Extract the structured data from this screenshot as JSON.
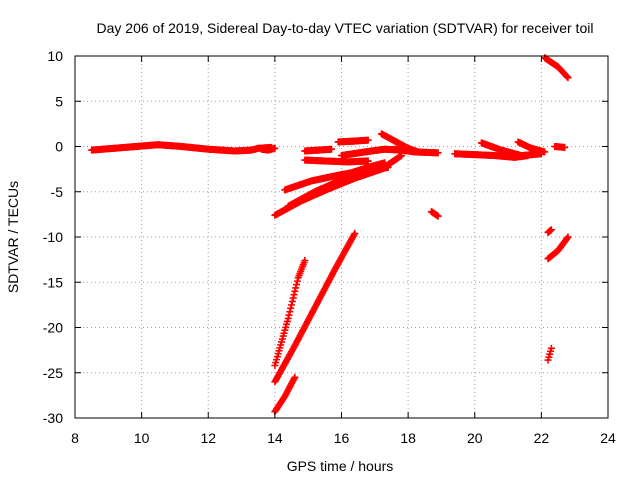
{
  "chart_data": {
    "type": "scatter",
    "title": "Day 206 of 2019, Sidereal Day-to-day VTEC variation (SDTVAR) for receiver toil",
    "xlabel": "GPS time / hours",
    "ylabel": "SDTVAR / TECUs",
    "xlim": [
      8,
      24
    ],
    "ylim": [
      -30,
      10
    ],
    "x_ticks": [
      8,
      10,
      12,
      14,
      16,
      18,
      20,
      22,
      24
    ],
    "y_ticks": [
      -30,
      -25,
      -20,
      -15,
      -10,
      -5,
      0,
      5,
      10
    ],
    "x_tick_labels": [
      "8",
      "10",
      "12",
      "14",
      "16",
      "18",
      "20",
      "22",
      "24"
    ],
    "y_tick_labels": [
      "-30",
      "-25",
      "-20",
      "-15",
      "-10",
      "-5",
      "0",
      "5",
      "10"
    ],
    "grid": true,
    "marker_color": "#ff0000",
    "series": [
      {
        "tracks": [
          [
            [
              8.5,
              -0.4
            ],
            [
              9.5,
              -0.1
            ],
            [
              10.5,
              0.2
            ],
            [
              11.2,
              0.0
            ],
            [
              12.0,
              -0.3
            ],
            [
              12.8,
              -0.5
            ],
            [
              13.3,
              -0.4
            ],
            [
              13.5,
              -0.2
            ],
            [
              13.9,
              -0.1
            ]
          ],
          [
            [
              13.6,
              -0.3
            ],
            [
              13.8,
              -0.4
            ],
            [
              14.0,
              -0.2
            ]
          ],
          [
            [
              14.9,
              -0.5
            ],
            [
              15.3,
              -0.4
            ],
            [
              15.7,
              -0.3
            ]
          ],
          [
            [
              14.9,
              -1.5
            ],
            [
              15.5,
              -1.6
            ],
            [
              16.2,
              -1.7
            ],
            [
              16.8,
              -1.6
            ]
          ],
          [
            [
              15.9,
              0.5
            ],
            [
              16.4,
              0.6
            ],
            [
              16.8,
              0.7
            ]
          ],
          [
            [
              16.0,
              -1.0
            ],
            [
              16.7,
              -0.6
            ],
            [
              17.3,
              -0.3
            ],
            [
              17.8,
              -0.4
            ]
          ],
          [
            [
              17.2,
              1.4
            ],
            [
              17.6,
              0.6
            ],
            [
              18.0,
              -0.2
            ],
            [
              18.3,
              -0.6
            ]
          ],
          [
            [
              17.6,
              -0.3
            ],
            [
              18.2,
              -0.6
            ],
            [
              18.9,
              -0.7
            ]
          ],
          [
            [
              19.4,
              -0.8
            ],
            [
              20.0,
              -0.9
            ],
            [
              20.6,
              -1.0
            ],
            [
              21.2,
              -1.2
            ],
            [
              21.6,
              -1.0
            ]
          ],
          [
            [
              20.2,
              0.4
            ],
            [
              20.8,
              -0.4
            ],
            [
              21.4,
              -1.0
            ],
            [
              22.0,
              -0.8
            ]
          ],
          [
            [
              21.3,
              0.5
            ],
            [
              21.7,
              -0.2
            ],
            [
              22.1,
              -0.6
            ]
          ],
          [
            [
              14.0,
              -7.6
            ],
            [
              14.8,
              -6.0
            ],
            [
              15.6,
              -4.7
            ],
            [
              16.4,
              -3.5
            ],
            [
              17.2,
              -2.5
            ],
            [
              17.8,
              -1.0
            ]
          ],
          [
            [
              14.4,
              -6.6
            ],
            [
              15.2,
              -5.0
            ],
            [
              16.0,
              -3.7
            ],
            [
              16.8,
              -2.3
            ]
          ],
          [
            [
              14.8,
              -5.8
            ],
            [
              15.6,
              -4.5
            ],
            [
              16.4,
              -3.1
            ],
            [
              17.4,
              -2.3
            ]
          ],
          [
            [
              14.3,
              -4.8
            ],
            [
              15.1,
              -3.8
            ],
            [
              16.0,
              -3.1
            ],
            [
              16.8,
              -2.6
            ]
          ],
          [
            [
              15.8,
              -3.4
            ],
            [
              16.3,
              -2.9
            ],
            [
              16.8,
              -2.3
            ],
            [
              17.3,
              -1.8
            ]
          ],
          [
            [
              18.7,
              -7.2
            ],
            [
              18.9,
              -7.7
            ]
          ],
          [
            [
              22.1,
              9.8
            ],
            [
              22.5,
              8.8
            ],
            [
              22.8,
              7.6
            ]
          ],
          [
            [
              22.4,
              0.0
            ],
            [
              22.7,
              -0.1
            ]
          ],
          [
            [
              22.2,
              -9.5
            ],
            [
              22.3,
              -9.2
            ]
          ],
          [
            [
              22.2,
              -12.4
            ],
            [
              22.5,
              -11.5
            ],
            [
              22.8,
              -10.0
            ]
          ],
          [
            [
              22.2,
              -23.6
            ],
            [
              22.3,
              -22.3
            ]
          ],
          [
            [
              14.0,
              -24.2
            ],
            [
              14.4,
              -19.0
            ],
            [
              14.7,
              -14.5
            ],
            [
              14.9,
              -12.6
            ]
          ],
          [
            [
              14.0,
              -26.0
            ],
            [
              14.6,
              -22.0
            ],
            [
              15.2,
              -17.8
            ],
            [
              15.8,
              -13.6
            ],
            [
              16.4,
              -9.6
            ]
          ],
          [
            [
              14.0,
              -29.3
            ],
            [
              14.3,
              -27.6
            ],
            [
              14.6,
              -25.5
            ]
          ]
        ]
      }
    ]
  }
}
